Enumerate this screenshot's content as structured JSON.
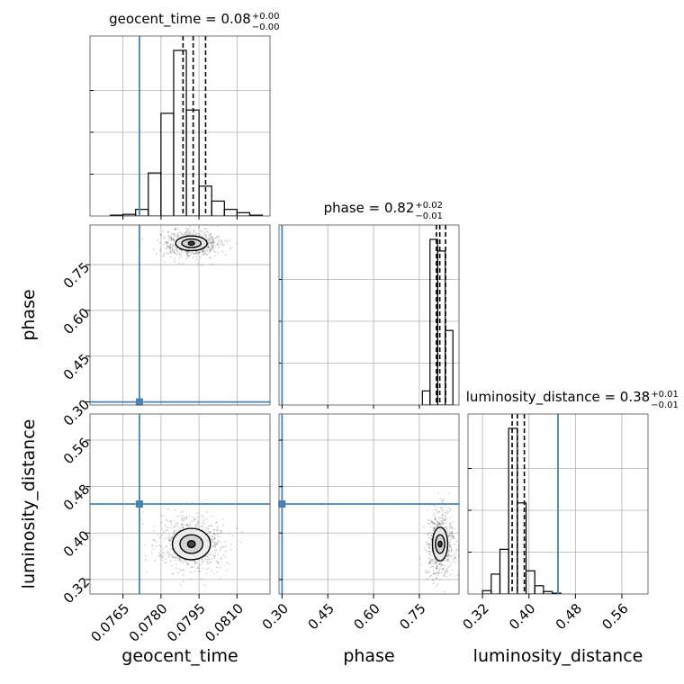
{
  "chart_data": {
    "type": "corner",
    "grid": true,
    "truth_color": "#4682b4",
    "parameters": [
      {
        "name": "geocent_time",
        "axis_label": "geocent_time",
        "title": "geocent_time = 0.08",
        "title_sup": "+0.00",
        "title_sub": "−0.00",
        "range": [
          0.0752,
          0.0823
        ],
        "ticks": [
          0.0765,
          0.078,
          0.0795,
          0.081
        ],
        "tick_labels": [
          "0.0765",
          "0.0780",
          "0.0795",
          "0.0810"
        ],
        "truth": 0.07715,
        "quantiles": [
          0.07887,
          0.07927,
          0.07976
        ],
        "hist_edges": [
          0.076,
          0.0765,
          0.077,
          0.0775,
          0.078,
          0.0785,
          0.079,
          0.0795,
          0.08,
          0.0805,
          0.081,
          0.0815,
          0.082
        ],
        "hist_counts": [
          0.005,
          0.01,
          0.04,
          0.26,
          0.62,
          1.0,
          0.64,
          0.18,
          0.09,
          0.04,
          0.02,
          0.005
        ]
      },
      {
        "name": "phase",
        "axis_label": "phase",
        "title": "phase = 0.82",
        "title_sup": "+0.02",
        "title_sub": "−0.01",
        "range": [
          0.29,
          0.88
        ],
        "ticks": [
          0.3,
          0.45,
          0.6,
          0.75
        ],
        "tick_labels": [
          "0.30",
          "0.45",
          "0.60",
          "0.75"
        ],
        "truth": 0.3,
        "quantiles": [
          0.806,
          0.817,
          0.836
        ],
        "hist_edges": [
          0.76,
          0.785,
          0.81,
          0.835,
          0.86
        ],
        "hist_counts": [
          0.085,
          1.0,
          0.93,
          0.45
        ]
      },
      {
        "name": "luminosity_distance",
        "axis_label": "luminosity_distance",
        "title": "luminosity_distance = 0.38",
        "title_sup": "+0.01",
        "title_sub": "−0.01",
        "range": [
          0.295,
          0.605
        ],
        "ticks": [
          0.32,
          0.4,
          0.48,
          0.56
        ],
        "tick_labels": [
          "0.32",
          "0.40",
          "0.48",
          "0.56"
        ],
        "truth": 0.45,
        "quantiles": [
          0.371,
          0.38,
          0.392
        ],
        "hist_edges": [
          0.32,
          0.335,
          0.35,
          0.365,
          0.38,
          0.395,
          0.41,
          0.425,
          0.44,
          0.455
        ],
        "hist_counts": [
          0.02,
          0.12,
          0.27,
          1.0,
          0.55,
          0.14,
          0.05,
          0.015,
          0.005
        ]
      }
    ],
    "pairs": [
      {
        "x": "geocent_time",
        "y": "phase",
        "center": [
          0.0792,
          0.82
        ],
        "contours": [
          {
            "rx": 0.00012,
            "ry": 0.006,
            "fill": "#2a2a2a"
          },
          {
            "rx": 0.00038,
            "ry": 0.014,
            "fill": "#cfcfcf"
          },
          {
            "rx": 0.00062,
            "ry": 0.024,
            "fill": "#eeeeee"
          }
        ]
      },
      {
        "x": "geocent_time",
        "y": "luminosity_distance",
        "center": [
          0.0792,
          0.381
        ],
        "contours": [
          {
            "rx": 0.00015,
            "ry": 0.006,
            "fill": "#2a2a2a"
          },
          {
            "rx": 0.00045,
            "ry": 0.016,
            "fill": "#cfcfcf"
          },
          {
            "rx": 0.00075,
            "ry": 0.027,
            "fill": "#eeeeee"
          }
        ]
      },
      {
        "x": "phase",
        "y": "luminosity_distance",
        "center": [
          0.818,
          0.381
        ],
        "contours": [
          {
            "rx": 0.006,
            "ry": 0.005,
            "fill": "#2a2a2a"
          },
          {
            "rx": 0.015,
            "ry": 0.016,
            "fill": "#cfcfcf"
          },
          {
            "rx": 0.025,
            "ry": 0.029,
            "fill": "#eeeeee"
          }
        ]
      }
    ]
  }
}
